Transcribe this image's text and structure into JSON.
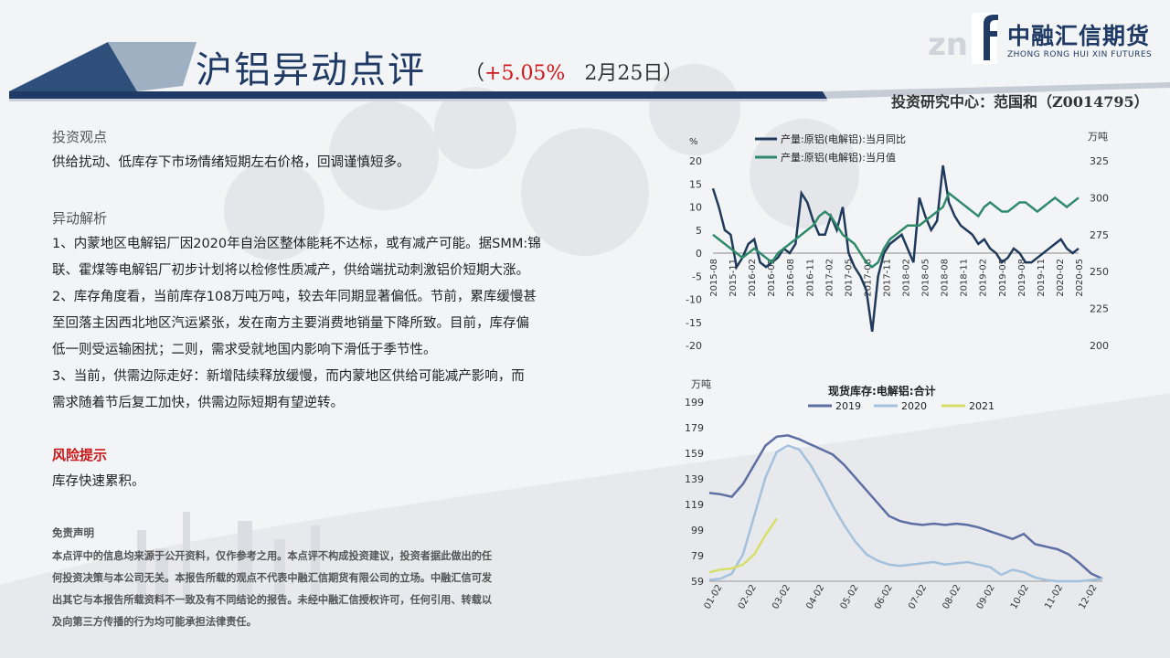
{
  "header": {
    "title": "沪铝异动点评",
    "paren_open": "（",
    "change_pct": "+5.05%",
    "date": "2月25日",
    "paren_close": "）",
    "logo_cn": "中融汇信期货",
    "logo_en": "ZHONG RONG HUI XIN FUTURES",
    "research": "投资研究中心：范国和（Z0014795）"
  },
  "sections": {
    "view_title": "投资观点",
    "view_text": "供给扰动、低库存下市场情绪短期左右价格，回调谨慎短多。",
    "analysis_title": "异动解析",
    "analysis_lines": [
      "1、内蒙地区电解铝厂因2020年自治区整体能耗不达标，或有减产可能。据SMM:锦",
      "联、霍煤等电解铝厂初步计划将以检修性质减产，供给端扰动刺激铝价短期大涨。",
      "2、库存角度看，当前库存108万吨万吨，较去年同期显著偏低。节前，累库缓慢甚",
      "至回落主因西北地区汽运紧张，发在南方主要消费地销量下降所致。目前，库存偏",
      "低一则受运输困扰；二则，需求受就地国内影响下滑低于季节性。",
      "3、当前，供需边际走好：新增陆续释放缓慢，而内蒙地区供给可能减产影响，而",
      "需求随着节后复工加快，供需边际短期有望逆转。"
    ],
    "risk_title": "风险提示",
    "risk_text": "库存快速累积。",
    "disclaimer_title": "免责声明",
    "disclaimer_lines": [
      "本点评中的信息均来源于公开资料，仅作参考之用。本点评不构成投资建议，投资者据此做出的任",
      "何投资决策与本公司无关。本报告所载的观点不代表中融汇信期货有限公司的立场。中融汇信可发",
      "出其它与本报告所载资料不一致及有不同结论的报告。未经中融汇信授权许可，任何引用、转载以",
      "及向第三方传播的行为均可能承担法律责任。"
    ]
  },
  "chart_data": [
    {
      "type": "line",
      "title": "",
      "left_unit": "%",
      "right_unit": "万吨",
      "left_ticks": [
        "20",
        "15",
        "10",
        "5",
        "0",
        "-5",
        "-10",
        "-15",
        "-20"
      ],
      "right_ticks": [
        "325",
        "300",
        "275",
        "250",
        "225",
        "200"
      ],
      "ylim_left": [
        -20,
        20
      ],
      "ylim_right": [
        200,
        325
      ],
      "x_ticks": [
        "2015-08",
        "2015-11",
        "2016-02",
        "2016-05",
        "2016-08",
        "2016-11",
        "2017-02",
        "2017-05",
        "2017-08",
        "2017-11",
        "2018-02",
        "2018-05",
        "2018-08",
        "2018-11",
        "2019-02",
        "2019-05",
        "2019-08",
        "2019-11",
        "2020-02",
        "2020-05"
      ],
      "series": [
        {
          "name": "产量:原铝(电解铝):当月同比",
          "color": "#1f3a5a",
          "axis": "left",
          "values": [
            14,
            10,
            5,
            4,
            -3,
            -1,
            2,
            3,
            -2,
            -3,
            -2,
            -1,
            1,
            0,
            2,
            13,
            11,
            7,
            4,
            4,
            8,
            5,
            10,
            0,
            -3,
            -5,
            -8,
            -17,
            -5,
            0,
            2,
            3,
            4,
            1,
            -2,
            12,
            8,
            5,
            7,
            19,
            11,
            8,
            6,
            5,
            4,
            2,
            3,
            1,
            0,
            -2,
            -1,
            1,
            0,
            -2,
            -2,
            -1,
            0,
            1,
            2,
            3,
            1,
            0,
            1
          ]
        },
        {
          "name": "产量:原铝(电解铝):当月值",
          "color": "#2f8a6a",
          "axis": "left",
          "values": [
            4,
            3,
            2,
            1,
            0,
            -1,
            0,
            1,
            0,
            -1,
            -2,
            0,
            1,
            2,
            3,
            4,
            5,
            6,
            8,
            9,
            8,
            6,
            4,
            3,
            2,
            0,
            -2,
            -3,
            -2,
            1,
            3,
            4,
            5,
            6,
            6,
            6,
            7,
            8,
            9,
            10,
            13,
            12,
            11,
            10,
            9,
            8,
            10,
            11,
            10,
            9,
            9,
            10,
            11,
            11,
            10,
            9,
            10,
            11,
            12,
            11,
            10,
            11,
            12
          ]
        }
      ]
    },
    {
      "type": "line",
      "title": "现货库存:电解铝:合计",
      "ylabel": "万吨",
      "y_ticks": [
        "199",
        "179",
        "159",
        "139",
        "119",
        "99",
        "79",
        "59"
      ],
      "ylim": [
        59,
        199
      ],
      "x_ticks": [
        "01-02",
        "02-02",
        "03-02",
        "04-02",
        "05-02",
        "06-02",
        "07-02",
        "08-02",
        "09-02",
        "10-02",
        "11-02",
        "12-02"
      ],
      "series": [
        {
          "name": "2019",
          "color": "#5d6ea3",
          "values": [
            128,
            127,
            125,
            135,
            150,
            165,
            172,
            173,
            170,
            166,
            162,
            158,
            150,
            140,
            130,
            120,
            110,
            106,
            104,
            103,
            104,
            103,
            104,
            103,
            101,
            98,
            95,
            92,
            96,
            88,
            86,
            84,
            80,
            73,
            65,
            61
          ]
        },
        {
          "name": "2020",
          "color": "#a3c1dc",
          "values": [
            60,
            61,
            65,
            80,
            110,
            140,
            160,
            165,
            162,
            150,
            135,
            118,
            103,
            90,
            80,
            75,
            72,
            71,
            72,
            73,
            74,
            72,
            73,
            74,
            72,
            70,
            64,
            68,
            66,
            62,
            60,
            59,
            59,
            59,
            60,
            61
          ]
        },
        {
          "name": "2021",
          "color": "#d7df6a",
          "values": [
            66,
            68,
            69,
            72,
            80,
            95,
            108
          ]
        }
      ]
    }
  ]
}
